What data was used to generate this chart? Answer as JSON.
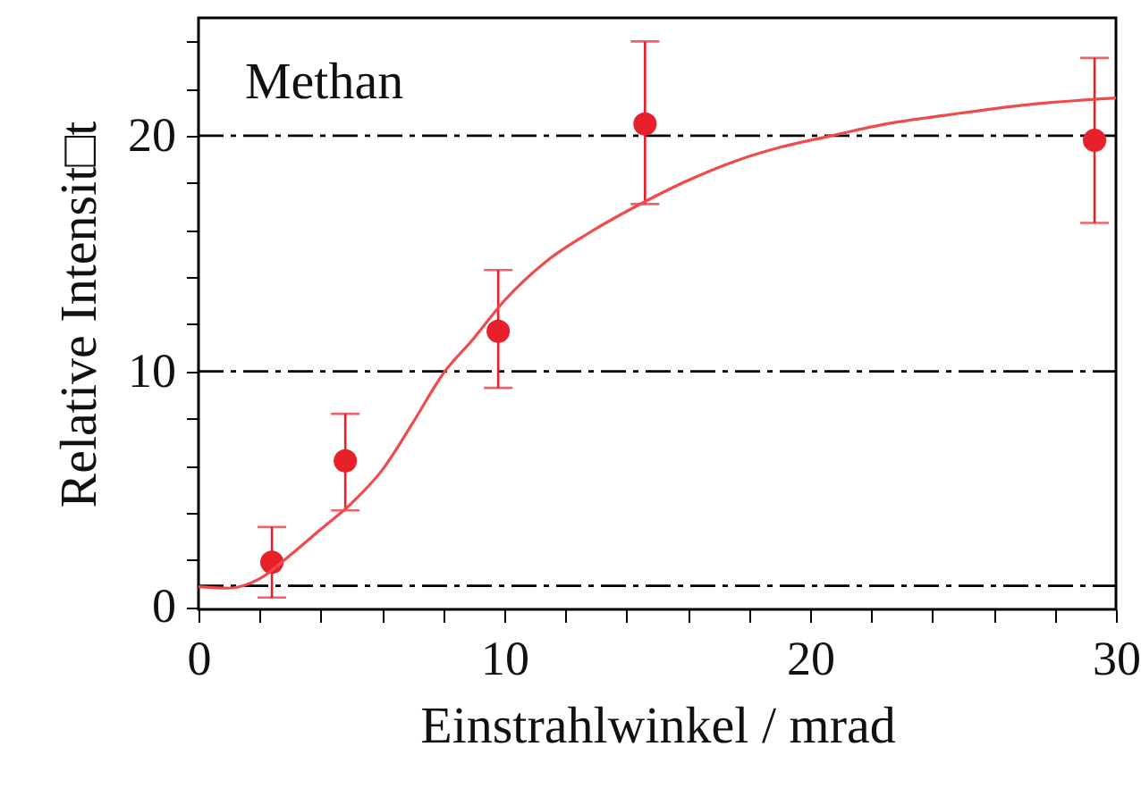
{
  "chart_data": {
    "type": "scatter",
    "xlabel": "Einstrahlwinkel / mrad",
    "ylabel": "Relative Intensit□t",
    "xlim": [
      0,
      30
    ],
    "ylim": [
      -0.1,
      25
    ],
    "xticks": [
      0,
      {
        "value": 2,
        "label": null
      },
      {
        "value": 4,
        "label": null
      },
      {
        "value": 6,
        "label": null
      },
      {
        "value": 8,
        "label": null
      },
      10,
      {
        "value": 12,
        "label": null
      },
      {
        "value": 14,
        "label": null
      },
      {
        "value": 16,
        "label": null
      },
      {
        "value": 18,
        "label": null
      },
      20,
      {
        "value": 22,
        "label": null
      },
      {
        "value": 24,
        "label": null
      },
      {
        "value": 26,
        "label": null
      },
      {
        "value": 28,
        "label": null
      },
      30
    ],
    "yticks": [
      0,
      {
        "value": 2,
        "label": null
      },
      {
        "value": 4,
        "label": null
      },
      {
        "value": 6,
        "label": null
      },
      {
        "value": 8,
        "label": null
      },
      10,
      {
        "value": 12,
        "label": null
      },
      {
        "value": 14,
        "label": null
      },
      {
        "value": 16,
        "label": null
      },
      {
        "value": 18,
        "label": null
      },
      20,
      {
        "value": 22,
        "label": null
      },
      {
        "value": 24,
        "label": null
      }
    ],
    "x": [
      2.4,
      4.8,
      9.8,
      14.6,
      29.3
    ],
    "series": [
      {
        "type": "scatter",
        "color": "#e8202a",
        "values": [
          1.9,
          6.2,
          11.7,
          20.5,
          19.8
        ],
        "errors": [
          [
            0.4,
            3.4
          ],
          [
            4.1,
            8.2
          ],
          [
            9.3,
            14.3
          ],
          [
            17.1,
            24.0
          ],
          [
            16.3,
            23.3
          ]
        ]
      },
      {
        "type": "line",
        "marker": "none",
        "color": "#f04a4a",
        "x": [
          0,
          1,
          2,
          3,
          4,
          5,
          6,
          7,
          8,
          9,
          10,
          11.4,
          12.8,
          14.3,
          16,
          17.5,
          19,
          20.7,
          22.5,
          24.6,
          27,
          30
        ],
        "values": [
          0.86,
          0.8,
          1.2,
          2.2,
          3.3,
          4.4,
          5.8,
          7.8,
          9.9,
          11.4,
          13.0,
          14.7,
          15.9,
          17.0,
          18.1,
          18.9,
          19.5,
          20.0,
          20.5,
          20.9,
          21.3,
          21.6
        ]
      }
    ],
    "marker": "circle",
    "ref_lines": [
      {
        "axis": "y",
        "value": 20,
        "color": "#000000",
        "line_style": "dashed"
      },
      {
        "axis": "y",
        "value": 10,
        "color": "#000000",
        "line_style": "dashed"
      },
      {
        "axis": "y",
        "value": 0.9,
        "color": "#000000",
        "line_style": "dashed"
      }
    ],
    "annotations": [
      "Methan"
    ]
  }
}
